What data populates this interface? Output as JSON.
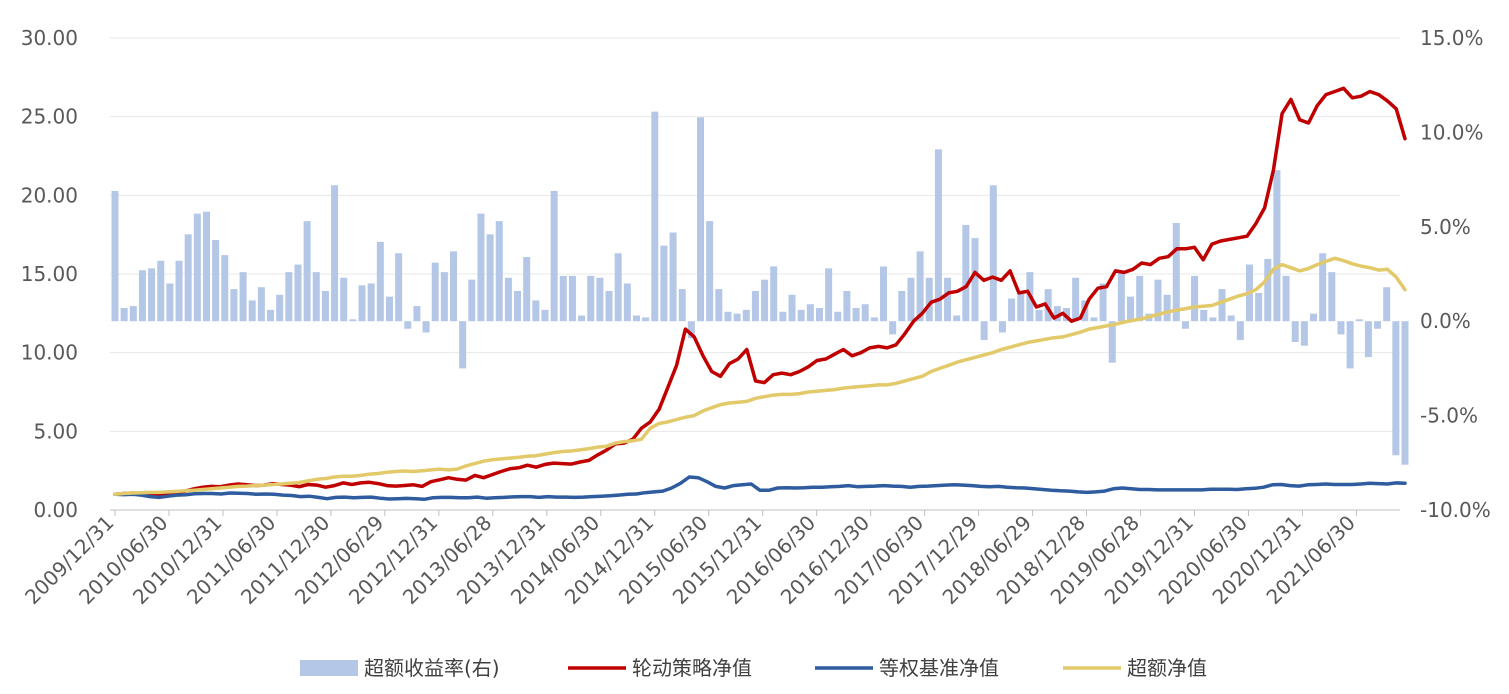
{
  "chart_data": {
    "type": "bar+line",
    "x_ticks": [
      "2009/12/31",
      "2010/06/30",
      "2010/12/31",
      "2011/06/30",
      "2011/12/30",
      "2012/06/29",
      "2012/12/31",
      "2013/06/28",
      "2013/12/31",
      "2014/06/30",
      "2014/12/31",
      "2015/06/30",
      "2015/12/31",
      "2016/06/30",
      "2016/12/30",
      "2017/06/30",
      "2017/12/29",
      "2018/06/29",
      "2018/12/28",
      "2019/06/28",
      "2019/12/31",
      "2020/06/30",
      "2020/12/31",
      "2021/06/30"
    ],
    "y_left": {
      "range": [
        0,
        30
      ],
      "ticks": [
        "0.00",
        "5.00",
        "10.00",
        "15.00",
        "20.00",
        "25.00",
        "30.00"
      ]
    },
    "y_right": {
      "range": [
        -10,
        15
      ],
      "unit": "%",
      "ticks": [
        "-10.0%",
        "-5.0%",
        "0.0%",
        "5.0%",
        "10.0%",
        "15.0%"
      ]
    },
    "grid": "horizontal",
    "legend_position": "bottom",
    "series": [
      {
        "name": "超额收益率(右)",
        "kind": "bar",
        "axis": "right",
        "color": "#b4c7e7",
        "values": [
          6.9,
          0.7,
          0.8,
          2.7,
          2.8,
          3.2,
          2.0,
          3.2,
          4.6,
          5.7,
          5.8,
          4.3,
          3.5,
          1.7,
          2.6,
          1.1,
          1.8,
          0.6,
          1.4,
          2.6,
          3.0,
          5.3,
          2.6,
          1.6,
          7.2,
          2.3,
          0.1,
          1.9,
          2.0,
          4.2,
          1.3,
          3.6,
          -0.4,
          0.8,
          -0.6,
          3.1,
          2.6,
          3.7,
          -2.5,
          2.2,
          5.7,
          4.6,
          5.3,
          2.3,
          1.6,
          3.4,
          1.1,
          0.6,
          6.9,
          2.4,
          2.4,
          0.3,
          2.4,
          2.3,
          1.6,
          3.6,
          2.0,
          0.3,
          0.2,
          11.1,
          4.0,
          4.7,
          1.7,
          -0.9,
          10.8,
          5.3,
          1.7,
          0.5,
          0.4,
          0.6,
          1.6,
          2.2,
          2.9,
          0.5,
          1.4,
          0.6,
          0.9,
          0.7,
          2.8,
          0.5,
          1.6,
          0.7,
          0.9,
          0.2,
          2.9,
          -0.7,
          1.6,
          2.3,
          3.7,
          2.3,
          9.1,
          2.3,
          0.3,
          5.1,
          4.4,
          -1.0,
          7.2,
          -0.6,
          1.2,
          1.6,
          2.6,
          0.6,
          1.7,
          0.8,
          0.7,
          2.3,
          1.1,
          0.2,
          2.0,
          -2.2,
          2.6,
          1.3,
          2.4,
          0.4,
          2.2,
          1.4,
          5.2,
          -0.4,
          2.4,
          0.6,
          0.2,
          1.7,
          0.3,
          -1.0,
          3.0,
          1.5,
          3.3,
          8.0,
          2.4,
          -1.1,
          -1.3,
          0.4,
          3.6,
          2.6,
          -0.7,
          -2.5,
          0.1,
          -1.9,
          -0.4,
          1.8,
          -7.1,
          -7.6
        ]
      },
      {
        "name": "轮动策略净值",
        "kind": "line",
        "axis": "left",
        "color": "#c00000",
        "values": [
          1.0,
          1.05,
          1.08,
          1.02,
          0.95,
          0.9,
          1.0,
          1.1,
          1.2,
          1.35,
          1.45,
          1.5,
          1.48,
          1.58,
          1.65,
          1.6,
          1.55,
          1.58,
          1.68,
          1.62,
          1.58,
          1.48,
          1.62,
          1.58,
          1.45,
          1.55,
          1.72,
          1.62,
          1.72,
          1.76,
          1.68,
          1.55,
          1.52,
          1.56,
          1.6,
          1.5,
          1.8,
          1.92,
          2.05,
          1.95,
          1.9,
          2.2,
          2.05,
          2.25,
          2.45,
          2.62,
          2.68,
          2.85,
          2.72,
          2.9,
          2.98,
          2.95,
          2.92,
          3.05,
          3.15,
          3.5,
          3.8,
          4.2,
          4.25,
          4.5,
          5.2,
          5.6,
          6.4,
          7.8,
          9.2,
          11.5,
          11.0,
          9.8,
          8.8,
          8.5,
          9.3,
          9.6,
          10.2,
          8.2,
          8.1,
          8.6,
          8.7,
          8.6,
          8.8,
          9.1,
          9.5,
          9.6,
          9.9,
          10.2,
          9.8,
          10.0,
          10.3,
          10.4,
          10.3,
          10.5,
          11.2,
          12.0,
          12.5,
          13.2,
          13.4,
          13.8,
          13.9,
          14.2,
          15.1,
          14.6,
          14.8,
          14.6,
          15.2,
          13.8,
          13.9,
          12.9,
          13.1,
          12.2,
          12.5,
          12.0,
          12.2,
          13.4,
          14.1,
          14.2,
          15.2,
          15.1,
          15.3,
          15.7,
          15.6,
          16.0,
          16.1,
          16.6,
          16.6,
          16.7,
          15.9,
          16.9,
          17.1,
          17.2,
          17.3,
          17.4,
          18.2,
          19.2,
          21.6,
          25.2,
          26.1,
          24.8,
          24.6,
          25.7,
          26.4,
          26.6,
          26.8,
          26.2,
          26.3,
          26.6,
          26.4,
          26.0,
          25.5,
          23.6
        ]
      },
      {
        "name": "等权基准净值",
        "kind": "line",
        "axis": "left",
        "color": "#2e5c9e",
        "values": [
          1.0,
          0.98,
          1.0,
          0.95,
          0.85,
          0.8,
          0.88,
          0.95,
          0.97,
          1.03,
          1.05,
          1.05,
          1.02,
          1.08,
          1.06,
          1.05,
          1.0,
          1.02,
          1.0,
          0.95,
          0.92,
          0.85,
          0.88,
          0.8,
          0.72,
          0.8,
          0.82,
          0.78,
          0.8,
          0.82,
          0.75,
          0.7,
          0.72,
          0.74,
          0.72,
          0.68,
          0.78,
          0.8,
          0.8,
          0.78,
          0.78,
          0.82,
          0.75,
          0.78,
          0.8,
          0.83,
          0.85,
          0.85,
          0.8,
          0.85,
          0.82,
          0.82,
          0.8,
          0.82,
          0.85,
          0.88,
          0.9,
          0.95,
          1.0,
          1.02,
          1.1,
          1.15,
          1.2,
          1.4,
          1.7,
          2.1,
          2.05,
          1.8,
          1.5,
          1.4,
          1.55,
          1.6,
          1.65,
          1.25,
          1.25,
          1.4,
          1.42,
          1.4,
          1.42,
          1.45,
          1.45,
          1.48,
          1.5,
          1.55,
          1.48,
          1.5,
          1.52,
          1.55,
          1.52,
          1.5,
          1.45,
          1.5,
          1.52,
          1.55,
          1.58,
          1.6,
          1.58,
          1.55,
          1.5,
          1.48,
          1.5,
          1.45,
          1.42,
          1.4,
          1.35,
          1.3,
          1.25,
          1.22,
          1.2,
          1.15,
          1.12,
          1.15,
          1.2,
          1.35,
          1.4,
          1.35,
          1.3,
          1.3,
          1.28,
          1.28,
          1.28,
          1.28,
          1.28,
          1.28,
          1.32,
          1.32,
          1.32,
          1.3,
          1.35,
          1.38,
          1.45,
          1.6,
          1.62,
          1.55,
          1.52,
          1.6,
          1.62,
          1.65,
          1.62,
          1.62,
          1.62,
          1.65,
          1.7,
          1.68,
          1.65,
          1.72,
          1.7
        ]
      },
      {
        "name": "超额净值",
        "kind": "line",
        "axis": "left",
        "color": "#e2c96a",
        "values": [
          1.0,
          1.05,
          1.08,
          1.1,
          1.12,
          1.12,
          1.15,
          1.18,
          1.22,
          1.25,
          1.3,
          1.35,
          1.4,
          1.45,
          1.5,
          1.52,
          1.55,
          1.58,
          1.62,
          1.65,
          1.7,
          1.75,
          1.85,
          1.95,
          2.0,
          2.1,
          2.15,
          2.15,
          2.2,
          2.28,
          2.32,
          2.4,
          2.45,
          2.48,
          2.45,
          2.5,
          2.55,
          2.6,
          2.55,
          2.6,
          2.8,
          2.95,
          3.1,
          3.2,
          3.25,
          3.3,
          3.35,
          3.42,
          3.45,
          3.55,
          3.65,
          3.72,
          3.75,
          3.82,
          3.9,
          4.0,
          4.05,
          4.25,
          4.35,
          4.4,
          4.5,
          5.2,
          5.5,
          5.6,
          5.75,
          5.9,
          6.0,
          6.3,
          6.5,
          6.7,
          6.8,
          6.85,
          6.9,
          7.1,
          7.2,
          7.3,
          7.35,
          7.35,
          7.4,
          7.5,
          7.55,
          7.6,
          7.65,
          7.75,
          7.8,
          7.85,
          7.9,
          7.95,
          7.95,
          8.05,
          8.2,
          8.35,
          8.5,
          8.8,
          9.0,
          9.2,
          9.4,
          9.55,
          9.7,
          9.85,
          10.0,
          10.2,
          10.35,
          10.5,
          10.65,
          10.75,
          10.85,
          10.95,
          11.0,
          11.15,
          11.3,
          11.5,
          11.6,
          11.7,
          11.8,
          11.95,
          12.05,
          12.15,
          12.3,
          12.45,
          12.6,
          12.7,
          12.8,
          12.9,
          12.95,
          13.0,
          13.2,
          13.4,
          13.6,
          13.75,
          14.0,
          14.5,
          15.3,
          15.6,
          15.4,
          15.2,
          15.35,
          15.6,
          15.8,
          16.0,
          15.85,
          15.65,
          15.5,
          15.4,
          15.25,
          15.3,
          14.8,
          14.0
        ]
      }
    ]
  }
}
